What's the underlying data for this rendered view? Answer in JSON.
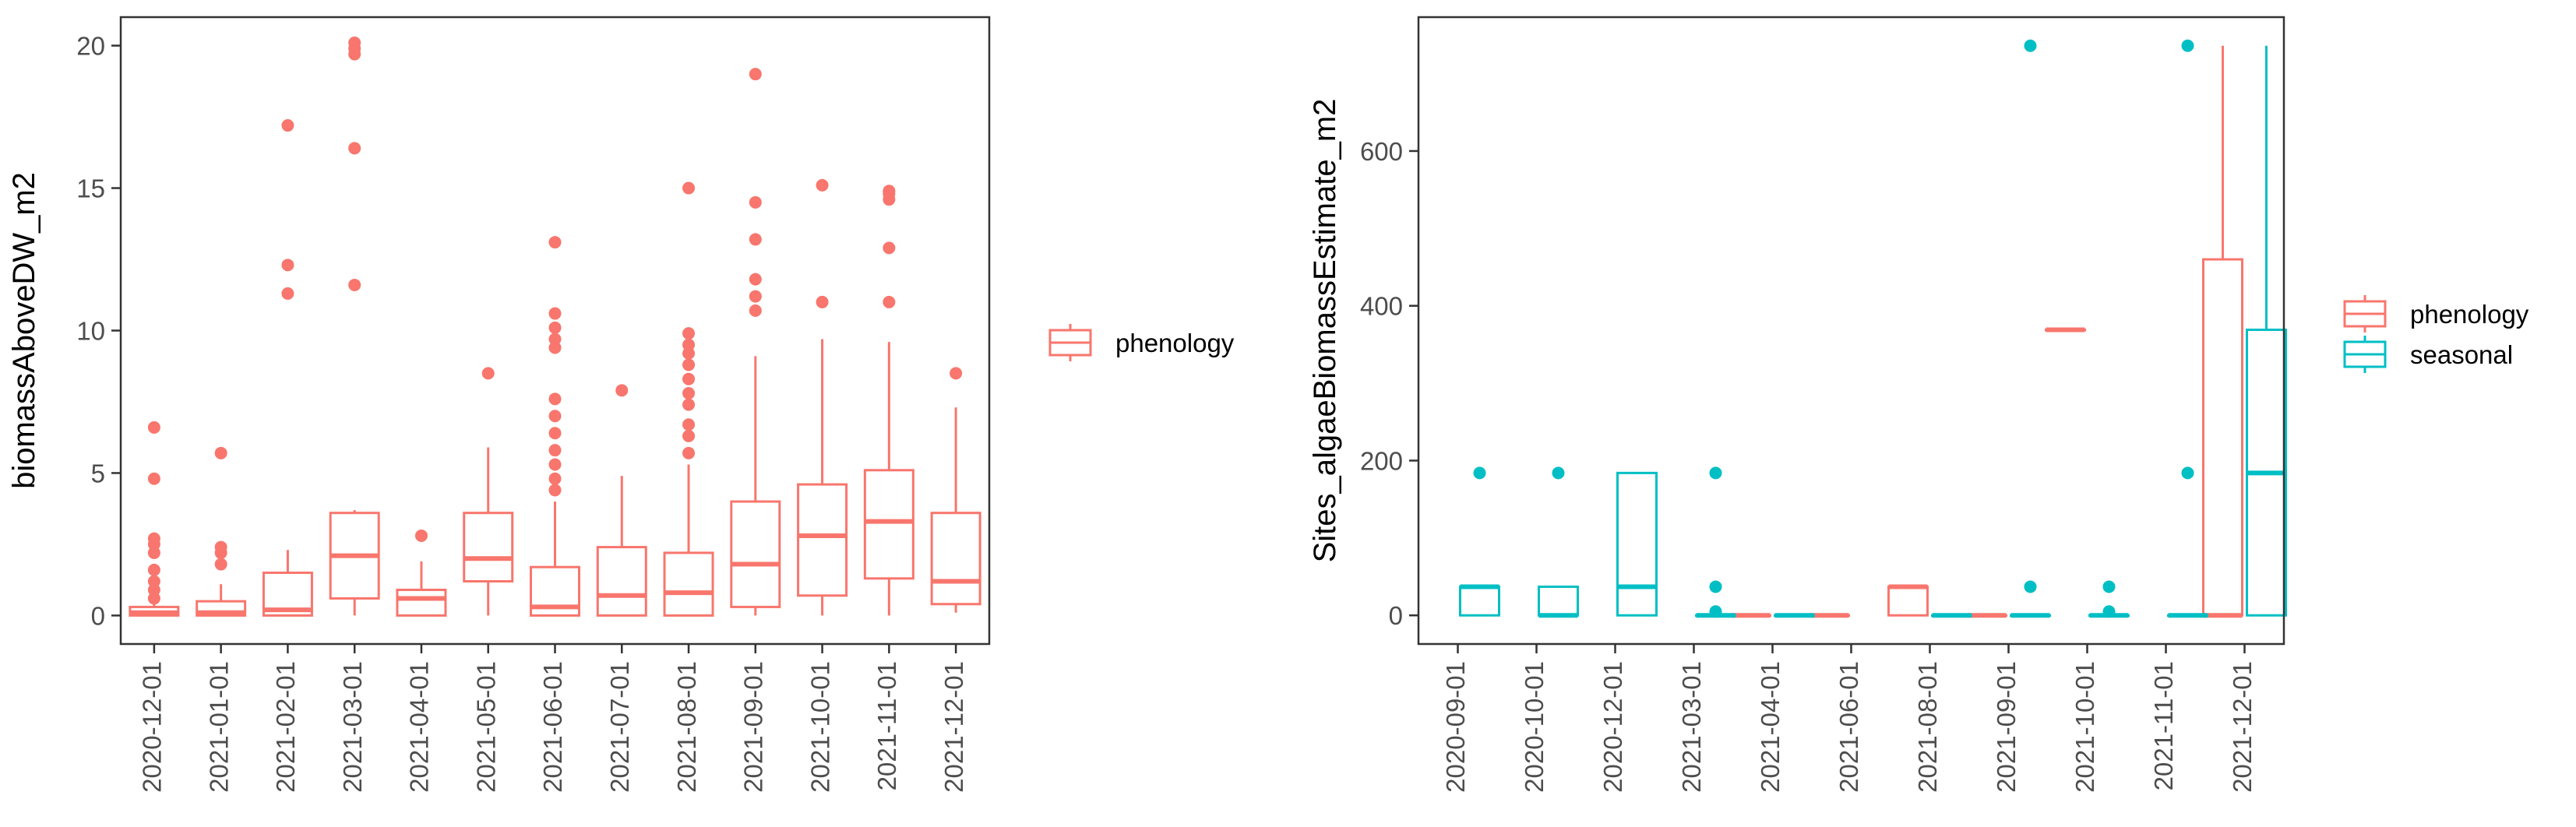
{
  "colors": {
    "phenology": "#F8766D",
    "seasonal": "#00BFC4",
    "axis": "#333333",
    "tick_text": "#4D4D4D",
    "title_text": "#000000"
  },
  "chart_data": [
    {
      "type": "boxplot",
      "title": "",
      "xlabel": "",
      "ylabel": "biomassAboveDW_m2",
      "ylim": [
        -1,
        21
      ],
      "yticks": [
        0,
        5,
        10,
        15,
        20
      ],
      "grid": false,
      "legend_position": "right",
      "legend": [
        {
          "name": "phenology",
          "color": "#F8766D"
        }
      ],
      "categories": [
        "2020-12-01",
        "2021-01-01",
        "2021-02-01",
        "2021-03-01",
        "2021-04-01",
        "2021-05-01",
        "2021-06-01",
        "2021-07-01",
        "2021-08-01",
        "2021-09-01",
        "2021-10-01",
        "2021-11-01",
        "2021-12-01"
      ],
      "series": [
        {
          "name": "phenology",
          "boxes": [
            {
              "category": "2020-12-01",
              "min": 0,
              "q1": 0,
              "median": 0.1,
              "q3": 0.3,
              "max": 0.4,
              "outliers": [
                0.6,
                0.9,
                1.2,
                1.6,
                2.2,
                2.5,
                2.7,
                4.8,
                6.6
              ]
            },
            {
              "category": "2021-01-01",
              "min": 0,
              "q1": 0,
              "median": 0.1,
              "q3": 0.5,
              "max": 1.1,
              "outliers": [
                1.8,
                2.2,
                2.4,
                5.7
              ]
            },
            {
              "category": "2021-02-01",
              "min": 0,
              "q1": 0,
              "median": 0.2,
              "q3": 1.5,
              "max": 2.3,
              "outliers": [
                11.3,
                12.3,
                17.2
              ]
            },
            {
              "category": "2021-03-01",
              "min": 0,
              "q1": 0.6,
              "median": 2.1,
              "q3": 3.6,
              "max": 3.7,
              "outliers": [
                11.6,
                16.4,
                19.7,
                19.9,
                20.1
              ]
            },
            {
              "category": "2021-04-01",
              "min": 0,
              "q1": 0,
              "median": 0.6,
              "q3": 0.9,
              "max": 1.9,
              "outliers": [
                2.8
              ]
            },
            {
              "category": "2021-05-01",
              "min": 0,
              "q1": 1.2,
              "median": 2.0,
              "q3": 3.6,
              "max": 5.9,
              "outliers": [
                8.5
              ]
            },
            {
              "category": "2021-06-01",
              "min": 0,
              "q1": 0,
              "median": 0.3,
              "q3": 1.7,
              "max": 4.0,
              "outliers": [
                4.4,
                4.8,
                5.3,
                5.8,
                6.4,
                7.0,
                7.6,
                9.4,
                9.7,
                10.1,
                10.6,
                13.1
              ]
            },
            {
              "category": "2021-07-01",
              "min": 0,
              "q1": 0,
              "median": 0.7,
              "q3": 2.4,
              "max": 4.9,
              "outliers": [
                7.9
              ]
            },
            {
              "category": "2021-08-01",
              "min": 0,
              "q1": 0,
              "median": 0.8,
              "q3": 2.2,
              "max": 5.3,
              "outliers": [
                5.7,
                6.3,
                6.7,
                7.4,
                7.8,
                8.3,
                8.8,
                9.2,
                9.5,
                9.9,
                15.0
              ]
            },
            {
              "category": "2021-09-01",
              "min": 0,
              "q1": 0.3,
              "median": 1.8,
              "q3": 4.0,
              "max": 9.1,
              "outliers": [
                10.7,
                11.2,
                11.8,
                13.2,
                14.5,
                19.0
              ]
            },
            {
              "category": "2021-10-01",
              "min": 0,
              "q1": 0.7,
              "median": 2.8,
              "q3": 4.6,
              "max": 9.7,
              "outliers": [
                11.0,
                15.1
              ]
            },
            {
              "category": "2021-11-01",
              "min": 0,
              "q1": 1.3,
              "median": 3.3,
              "q3": 5.1,
              "max": 9.6,
              "outliers": [
                11.0,
                12.9,
                14.6,
                14.8,
                14.9
              ]
            },
            {
              "category": "2021-12-01",
              "min": 0.1,
              "q1": 0.4,
              "median": 1.2,
              "q3": 3.6,
              "max": 7.3,
              "outliers": [
                8.5
              ]
            }
          ]
        }
      ]
    },
    {
      "type": "boxplot",
      "title": "",
      "xlabel": "",
      "ylabel": "Sites_algaeBiomassEstimate_m2",
      "ylim": [
        -37,
        773
      ],
      "yticks": [
        0,
        200,
        400,
        600
      ],
      "grid": false,
      "legend_position": "right",
      "legend": [
        {
          "name": "phenology",
          "color": "#F8766D"
        },
        {
          "name": "seasonal",
          "color": "#00BFC4"
        }
      ],
      "categories": [
        "2020-09-01",
        "2020-10-01",
        "2020-12-01",
        "2021-03-01",
        "2021-04-01",
        "2021-06-01",
        "2021-08-01",
        "2021-09-01",
        "2021-10-01",
        "2021-11-01",
        "2021-12-01"
      ],
      "series": [
        {
          "name": "phenology",
          "boxes": [
            {
              "category": "2021-04-01",
              "min": 0,
              "q1": 0,
              "median": 0,
              "q3": 0,
              "max": 0,
              "outliers": []
            },
            {
              "category": "2021-06-01",
              "min": 0,
              "q1": 0,
              "median": 0,
              "q3": 0,
              "max": 0,
              "outliers": []
            },
            {
              "category": "2021-08-01",
              "min": 0,
              "q1": 0,
              "median": 37,
              "q3": 37,
              "max": 37,
              "outliers": []
            },
            {
              "category": "2021-09-01",
              "min": 0,
              "q1": 0,
              "median": 0,
              "q3": 0,
              "max": 0,
              "outliers": []
            },
            {
              "category": "2021-10-01",
              "min": 369,
              "q1": 369,
              "median": 369,
              "q3": 369,
              "max": 369,
              "outliers": []
            },
            {
              "category": "2021-12-01",
              "min": 0,
              "q1": 0,
              "median": 0,
              "q3": 460,
              "max": 736,
              "outliers": []
            }
          ]
        },
        {
          "name": "seasonal",
          "boxes": [
            {
              "category": "2020-09-01",
              "min": 0,
              "q1": 0,
              "median": 37,
              "q3": 37,
              "max": 37,
              "outliers": [
                184
              ]
            },
            {
              "category": "2020-10-01",
              "min": 0,
              "q1": 0,
              "median": 0,
              "q3": 37,
              "max": 37,
              "outliers": [
                184
              ]
            },
            {
              "category": "2020-12-01",
              "min": 0,
              "q1": 0,
              "median": 37,
              "q3": 184,
              "max": 184,
              "outliers": []
            },
            {
              "category": "2021-03-01",
              "min": 0,
              "q1": 0,
              "median": 0,
              "q3": 0,
              "max": 0,
              "outliers": [
                5,
                37,
                184
              ]
            },
            {
              "category": "2021-04-01",
              "min": 0,
              "q1": 0,
              "median": 0,
              "q3": 0,
              "max": 0,
              "outliers": []
            },
            {
              "category": "2021-08-01",
              "min": 0,
              "q1": 0,
              "median": 0,
              "q3": 0,
              "max": 0,
              "outliers": []
            },
            {
              "category": "2021-09-01",
              "min": 0,
              "q1": 0,
              "median": 0,
              "q3": 0,
              "max": 0,
              "outliers": [
                37,
                736
              ]
            },
            {
              "category": "2021-10-01",
              "min": 0,
              "q1": 0,
              "median": 0,
              "q3": 0,
              "max": 0,
              "outliers": [
                5,
                37
              ]
            },
            {
              "category": "2021-11-01",
              "min": 0,
              "q1": 0,
              "median": 0,
              "q3": 0,
              "max": 0,
              "outliers": [
                184,
                736
              ]
            },
            {
              "category": "2021-12-01",
              "min": 0,
              "q1": 0,
              "median": 184,
              "q3": 369,
              "max": 736,
              "outliers": []
            }
          ]
        }
      ]
    }
  ]
}
